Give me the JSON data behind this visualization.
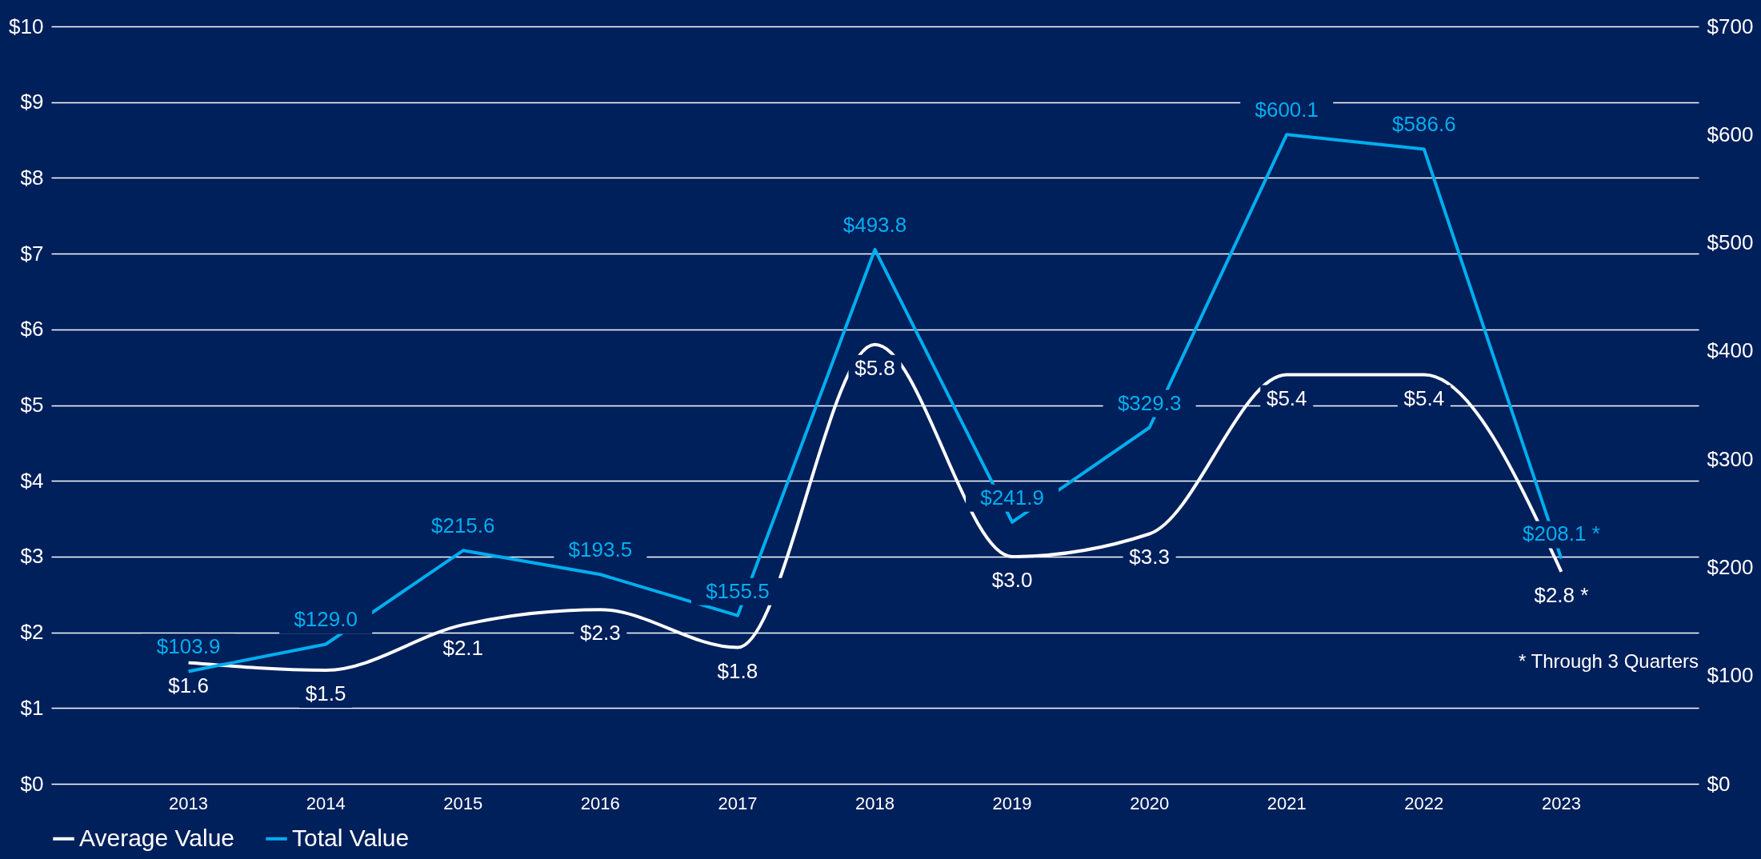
{
  "chart_data": {
    "type": "line",
    "categories": [
      "2013",
      "2014",
      "2015",
      "2016",
      "2017",
      "2018",
      "2019",
      "2020",
      "2021",
      "2022",
      "2023"
    ],
    "series": [
      {
        "name": "Average Value",
        "color": "#ffffff",
        "values": [
          1.6,
          1.5,
          2.1,
          2.3,
          1.8,
          5.8,
          3.0,
          3.3,
          5.4,
          5.4,
          2.8
        ],
        "value_labels": [
          "$1.6",
          "$1.5",
          "$2.1",
          "$2.3",
          "$1.8",
          "$5.8",
          "$3.0",
          "$3.3",
          "$5.4",
          "$5.4",
          "$2.8 *"
        ]
      },
      {
        "name": "Total Value",
        "color": "#00aeef",
        "axis": "y2",
        "values": [
          103.9,
          129.0,
          215.6,
          193.5,
          155.5,
          493.8,
          241.9,
          329.3,
          600.1,
          586.6,
          208.1
        ],
        "value_labels": [
          "$103.9",
          "$129.0",
          "$215.6",
          "$193.5",
          "$155.5",
          "$493.8",
          "$241.9",
          "$329.3",
          "$600.1",
          "$586.6",
          "$208.1 *"
        ]
      }
    ],
    "ylim": [
      0,
      10
    ],
    "yticks": [
      {
        "value": 0,
        "label": "$0"
      },
      {
        "value": 1,
        "label": "$1"
      },
      {
        "value": 2,
        "label": "$2"
      },
      {
        "value": 3,
        "label": "$3"
      },
      {
        "value": 4,
        "label": "$4"
      },
      {
        "value": 5,
        "label": "$5"
      },
      {
        "value": 6,
        "label": "$6"
      },
      {
        "value": 7,
        "label": "$7"
      },
      {
        "value": 8,
        "label": "$8"
      },
      {
        "value": 9,
        "label": "$9"
      },
      {
        "value": 10,
        "label": "$10"
      }
    ],
    "y2lim": [
      0,
      700
    ],
    "y2ticks": [
      {
        "value": 0,
        "label": "$0"
      },
      {
        "value": 100,
        "label": "$100"
      },
      {
        "value": 200,
        "label": "$200"
      },
      {
        "value": 300,
        "label": "$300"
      },
      {
        "value": 400,
        "label": "$400"
      },
      {
        "value": 500,
        "label": "$500"
      },
      {
        "value": 600,
        "label": "$600"
      },
      {
        "value": 700,
        "label": "$700"
      }
    ],
    "grid": "y",
    "legend": "bottom",
    "marker": "none",
    "line_style": "solid",
    "annotations": [
      "* Through 3 Quarters"
    ]
  }
}
